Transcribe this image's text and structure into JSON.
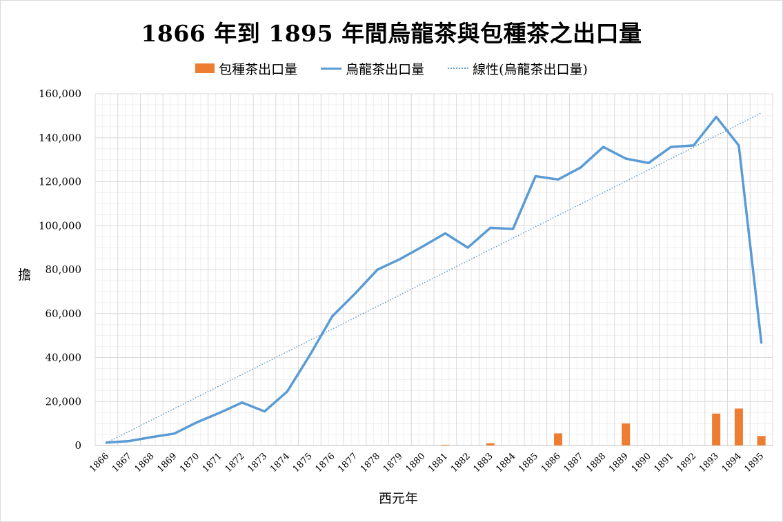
{
  "chart_data": {
    "type": "bar+line",
    "title": "1866 年到 1895 年間烏龍茶與包種茶之出口量",
    "xlabel": "西元年",
    "ylabel": "擔",
    "ylim": [
      0,
      160000
    ],
    "y_ticks": [
      0,
      20000,
      40000,
      60000,
      80000,
      100000,
      120000,
      140000,
      160000
    ],
    "y_tick_labels": [
      "0",
      "20,000",
      "40,000",
      "60,000",
      "80,000",
      "100,000",
      "120,000",
      "140,000",
      "160,000"
    ],
    "grid": true,
    "legend_position": "top",
    "categories": [
      "1866",
      "1867",
      "1868",
      "1869",
      "1870",
      "1871",
      "1872",
      "1873",
      "1874",
      "1875",
      "1876",
      "1877",
      "1878",
      "1879",
      "1880",
      "1881",
      "1882",
      "1883",
      "1884",
      "1885",
      "1886",
      "1887",
      "1888",
      "1889",
      "1890",
      "1891",
      "1892",
      "1893",
      "1894",
      "1895"
    ],
    "series": [
      {
        "name": "包種茶出口量",
        "type": "bar",
        "color": "#ed7d31",
        "values": [
          0,
          0,
          0,
          0,
          0,
          0,
          0,
          0,
          0,
          0,
          0,
          0,
          0,
          0,
          0,
          300,
          0,
          1000,
          0,
          0,
          5500,
          0,
          0,
          10000,
          0,
          0,
          0,
          14500,
          16800,
          4300
        ]
      },
      {
        "name": "烏龍茶出口量",
        "type": "line",
        "color": "#5b9bd5",
        "values": [
          1300,
          2000,
          3800,
          5400,
          10500,
          14800,
          19500,
          15500,
          24500,
          41000,
          58800,
          69000,
          80000,
          84800,
          90500,
          96500,
          90000,
          99000,
          98500,
          122500,
          121000,
          126500,
          135800,
          130500,
          128500,
          135800,
          136500,
          149500,
          136500,
          46800
        ]
      },
      {
        "name": "線性(烏龍茶出口量)",
        "type": "trendline",
        "color": "#5b9bd5",
        "values": [
          1248,
          6420,
          11592,
          16764,
          21936,
          27108,
          32280,
          37452,
          42624,
          47796,
          52968,
          58140,
          63312,
          68484,
          73656,
          78828,
          84000,
          89172,
          94344,
          99516,
          104688,
          109860,
          115032,
          120204,
          125376,
          130548,
          135720,
          140892,
          146064,
          151236
        ]
      }
    ]
  }
}
